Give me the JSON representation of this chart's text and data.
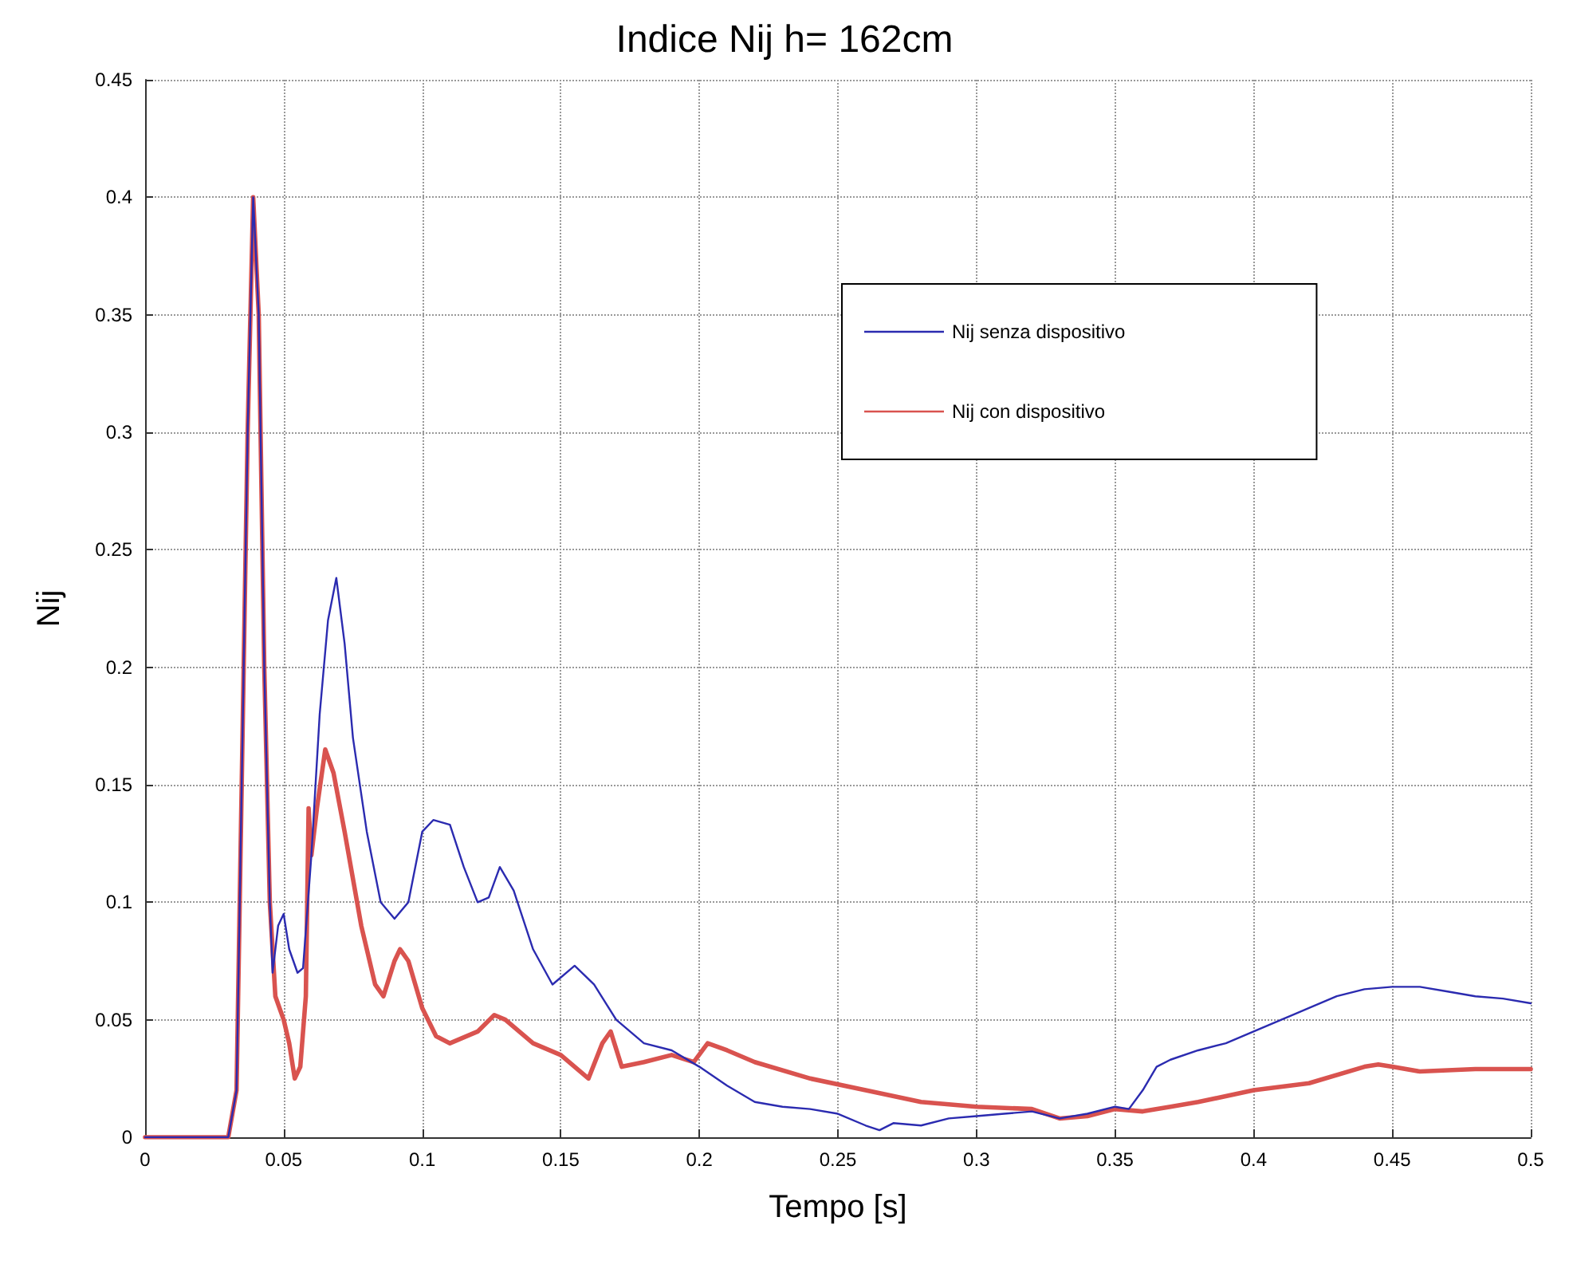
{
  "chart_data": {
    "type": "line",
    "title": "Indice Nij h= 162cm",
    "xlabel": "Tempo [s]",
    "ylabel": "Nij",
    "xlim": [
      0,
      0.5
    ],
    "xticks": [
      0,
      0.05,
      0.1,
      0.15,
      0.2,
      0.25,
      0.3,
      0.35,
      0.4,
      0.45,
      0.5
    ],
    "ylim": [
      0,
      0.45
    ],
    "yticks": [
      0,
      0.05,
      0.1,
      0.15,
      0.2,
      0.25,
      0.3,
      0.35,
      0.4,
      0.45
    ],
    "grid": true,
    "legend": "top right",
    "marker": "none",
    "line_style": "solid",
    "series": [
      {
        "name": "Nij senza dispositivo",
        "color": "#2b2bb0",
        "x": [
          0,
          0.03,
          0.033,
          0.037,
          0.039,
          0.041,
          0.043,
          0.045,
          0.046,
          0.048,
          0.05,
          0.052,
          0.055,
          0.057,
          0.06,
          0.063,
          0.066,
          0.069,
          0.072,
          0.075,
          0.08,
          0.085,
          0.09,
          0.095,
          0.1,
          0.104,
          0.11,
          0.115,
          0.12,
          0.124,
          0.128,
          0.133,
          0.14,
          0.147,
          0.155,
          0.162,
          0.17,
          0.18,
          0.19,
          0.2,
          0.21,
          0.22,
          0.23,
          0.24,
          0.25,
          0.26,
          0.265,
          0.27,
          0.28,
          0.29,
          0.3,
          0.31,
          0.32,
          0.33,
          0.34,
          0.35,
          0.355,
          0.36,
          0.365,
          0.37,
          0.38,
          0.39,
          0.4,
          0.41,
          0.42,
          0.43,
          0.44,
          0.45,
          0.46,
          0.47,
          0.48,
          0.49,
          0.5
        ],
        "values": [
          0,
          0,
          0.02,
          0.3,
          0.4,
          0.35,
          0.2,
          0.1,
          0.07,
          0.09,
          0.095,
          0.08,
          0.07,
          0.072,
          0.12,
          0.18,
          0.22,
          0.238,
          0.21,
          0.17,
          0.13,
          0.1,
          0.093,
          0.1,
          0.13,
          0.135,
          0.133,
          0.115,
          0.1,
          0.102,
          0.115,
          0.105,
          0.08,
          0.065,
          0.073,
          0.065,
          0.05,
          0.04,
          0.037,
          0.03,
          0.022,
          0.015,
          0.013,
          0.012,
          0.01,
          0.005,
          0.003,
          0.006,
          0.005,
          0.008,
          0.009,
          0.01,
          0.011,
          0.008,
          0.01,
          0.013,
          0.012,
          0.02,
          0.03,
          0.033,
          0.037,
          0.04,
          0.045,
          0.05,
          0.055,
          0.06,
          0.063,
          0.064,
          0.064,
          0.062,
          0.06,
          0.059,
          0.057
        ]
      },
      {
        "name": "Nij con dispositivo",
        "color": "#d9534f",
        "x": [
          0,
          0.03,
          0.033,
          0.037,
          0.039,
          0.041,
          0.043,
          0.045,
          0.047,
          0.05,
          0.052,
          0.054,
          0.056,
          0.058,
          0.059,
          0.06,
          0.062,
          0.065,
          0.068,
          0.072,
          0.078,
          0.083,
          0.086,
          0.09,
          0.092,
          0.095,
          0.1,
          0.105,
          0.11,
          0.12,
          0.126,
          0.13,
          0.14,
          0.15,
          0.16,
          0.165,
          0.168,
          0.172,
          0.18,
          0.19,
          0.198,
          0.203,
          0.21,
          0.22,
          0.24,
          0.26,
          0.28,
          0.3,
          0.32,
          0.33,
          0.34,
          0.35,
          0.36,
          0.37,
          0.38,
          0.4,
          0.42,
          0.44,
          0.445,
          0.45,
          0.46,
          0.48,
          0.5
        ],
        "values": [
          0,
          0,
          0.02,
          0.3,
          0.4,
          0.35,
          0.2,
          0.1,
          0.06,
          0.05,
          0.04,
          0.025,
          0.03,
          0.06,
          0.14,
          0.12,
          0.14,
          0.165,
          0.155,
          0.13,
          0.09,
          0.065,
          0.06,
          0.075,
          0.08,
          0.075,
          0.055,
          0.043,
          0.04,
          0.045,
          0.052,
          0.05,
          0.04,
          0.035,
          0.025,
          0.04,
          0.045,
          0.03,
          0.032,
          0.035,
          0.032,
          0.04,
          0.037,
          0.032,
          0.025,
          0.02,
          0.015,
          0.013,
          0.012,
          0.008,
          0.009,
          0.012,
          0.011,
          0.013,
          0.015,
          0.02,
          0.023,
          0.03,
          0.031,
          0.03,
          0.028,
          0.029,
          0.029
        ]
      }
    ]
  }
}
